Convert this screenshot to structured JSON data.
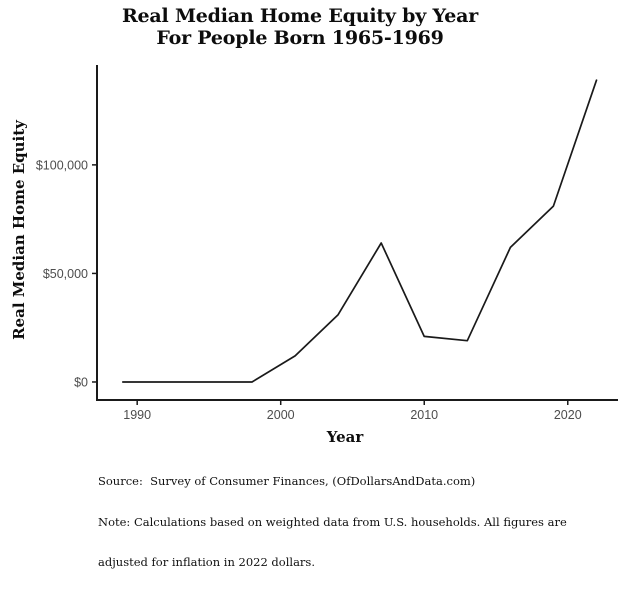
{
  "title": {
    "line1": "Real Median Home Equity by Year",
    "line2": "For People Born 1965-1969"
  },
  "axes": {
    "x_label": "Year",
    "y_label": "Real Median Home Equity"
  },
  "footer": {
    "line1": "Source:  Survey of Consumer Finances, (OfDollarsAndData.com)",
    "line2": "Note: Calculations based on weighted data from U.S. households. All figures are",
    "line3": "adjusted for inflation in 2022 dollars."
  },
  "colors": {
    "background": "#ffffff",
    "line": "#1a1a1a",
    "axis": "#1a1a1a",
    "tick_label": "#4d4d4d",
    "text": "#0d0d0d"
  },
  "chart_data": {
    "type": "line",
    "title": "Real Median Home Equity by Year For People Born 1965-1969",
    "xlabel": "Year",
    "ylabel": "Real Median Home Equity",
    "x": [
      1989,
      1992,
      1995,
      1998,
      2001,
      2004,
      2007,
      2010,
      2013,
      2016,
      2019,
      2022
    ],
    "values": [
      0,
      0,
      0,
      0,
      12000,
      31000,
      64000,
      21000,
      19000,
      62000,
      81000,
      139000
    ],
    "series_name": "Real Median Home Equity ($, 2022 dollars)",
    "x_ticks": [
      {
        "value": 1990,
        "label": "1990"
      },
      {
        "value": 2000,
        "label": "2000"
      },
      {
        "value": 2010,
        "label": "2010"
      },
      {
        "value": 2020,
        "label": "2020"
      }
    ],
    "y_ticks": [
      {
        "value": 0,
        "label": "$0"
      },
      {
        "value": 50000,
        "label": "$50,000"
      },
      {
        "value": 100000,
        "label": "$100,000"
      }
    ],
    "xlim": [
      1987.2,
      2023.5
    ],
    "ylim": [
      -8300,
      146000
    ],
    "grid": false,
    "legend": false
  }
}
